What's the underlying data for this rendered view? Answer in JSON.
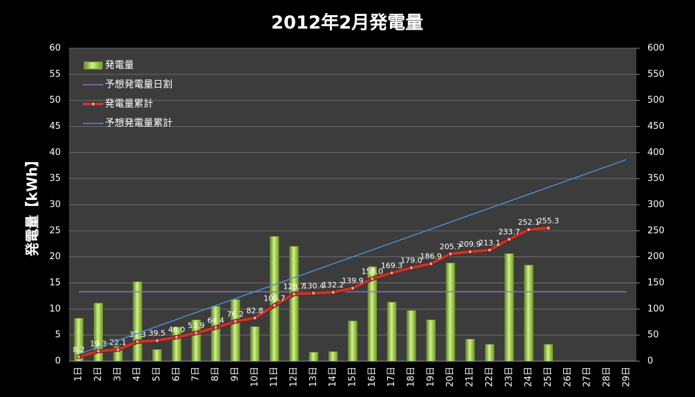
{
  "chart_data": {
    "type": "bar",
    "title": "2012年2月発電量",
    "y_label": "発電量【kWh】",
    "categories": [
      "1日",
      "2日",
      "3日",
      "4日",
      "5日",
      "6日",
      "7日",
      "8日",
      "9日",
      "10日",
      "11日",
      "12日",
      "13日",
      "14日",
      "15日",
      "16日",
      "17日",
      "18日",
      "19日",
      "20日",
      "21日",
      "22日",
      "23日",
      "24日",
      "25日",
      "26日",
      "27日",
      "28日",
      "29日"
    ],
    "ylim": [
      0,
      60
    ],
    "yticks": [
      0,
      5,
      10,
      15,
      20,
      25,
      30,
      35,
      40,
      45,
      50,
      55,
      60
    ],
    "y2lim": [
      0,
      600
    ],
    "y2ticks": [
      0,
      50,
      100,
      150,
      200,
      250,
      300,
      350,
      400,
      450,
      500,
      550,
      600
    ],
    "grid": true,
    "legend": "upper left",
    "series": [
      {
        "name": "発電量",
        "type": "bar",
        "color": "#8fbf3a",
        "axis": "y",
        "values": [
          8.2,
          11.1,
          2.8,
          15.2,
          2.2,
          6.5,
          7.9,
          10.5,
          11.8,
          6.6,
          23.9,
          22.0,
          1.7,
          1.8,
          7.7,
          18.1,
          11.3,
          9.7,
          7.9,
          18.8,
          4.2,
          3.2,
          20.6,
          18.4,
          3.2,
          null,
          null,
          null,
          null
        ]
      },
      {
        "name": "予想発電量日割",
        "type": "line",
        "color": "#8e6fc4",
        "axis": "y",
        "values": [
          13.3,
          13.3,
          13.3,
          13.3,
          13.3,
          13.3,
          13.3,
          13.3,
          13.3,
          13.3,
          13.3,
          13.3,
          13.3,
          13.3,
          13.3,
          13.3,
          13.3,
          13.3,
          13.3,
          13.3,
          13.3,
          13.3,
          13.3,
          13.3,
          13.3,
          13.3,
          13.3,
          13.3,
          13.3
        ]
      },
      {
        "name": "発電量累計",
        "type": "line",
        "color": "#c0392b",
        "axis": "y2",
        "markers": true,
        "values": [
          8.2,
          19.3,
          22.1,
          37.3,
          39.5,
          46.0,
          53.9,
          64.4,
          76.2,
          82.8,
          106.7,
          128.7,
          130.4,
          132.2,
          139.9,
          158.0,
          169.3,
          179.0,
          186.9,
          205.7,
          209.9,
          213.1,
          233.7,
          252.1,
          255.3,
          null,
          null,
          null,
          null
        ],
        "value_labels": [
          "8.2",
          "19.3",
          "22.1",
          "37.3",
          "39.5",
          "46.0",
          "53.9",
          "64.4",
          "76.2",
          "82.8",
          "106.7",
          "128.7",
          "130.4",
          "132.2",
          "139.9",
          "158.0",
          "169.3",
          "179.0",
          "186.9",
          "205.7",
          "209.9",
          "213.1",
          "233.7",
          "252.1",
          "255.3",
          null,
          null,
          null,
          null
        ]
      },
      {
        "name": "予想発電量累計",
        "type": "line",
        "color": "#4a8fd8",
        "axis": "y2",
        "values": [
          13.3,
          26.7,
          40.0,
          53.3,
          66.7,
          80.0,
          93.3,
          106.7,
          120.0,
          133.3,
          146.7,
          160.0,
          173.3,
          186.7,
          200.0,
          213.3,
          226.7,
          240.0,
          253.3,
          266.7,
          280.0,
          293.3,
          306.7,
          320.0,
          333.3,
          346.7,
          360.0,
          373.3,
          386.7
        ]
      }
    ]
  }
}
